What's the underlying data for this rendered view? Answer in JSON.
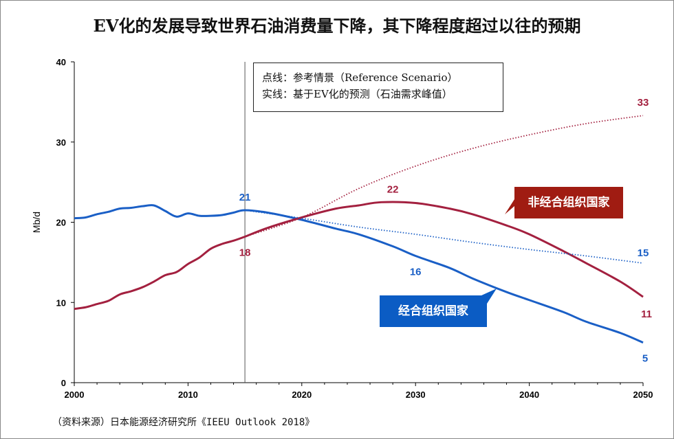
{
  "title": "EV化的发展导致世界石油消费量下降，其下降程度超过以往的预期",
  "source": "（资料来源）日本能源经济研究所《IEEU Outlook 2018》",
  "legend": {
    "line1": "点线：参考情景（Reference Scenario）",
    "line2": "实线：基于EV化的预测（石油需求峰值）"
  },
  "callouts": {
    "non_oecd": "非经合组织国家",
    "oecd": "经合组织国家"
  },
  "colors": {
    "oecd": "#1a5fc6",
    "non_oecd": "#a3203f",
    "non_oecd_box": "#a01c12",
    "oecd_box": "#0b5cc4"
  },
  "chart_data": {
    "type": "line",
    "xlabel": "",
    "ylabel": "Mb/d",
    "xlim": [
      2000,
      2050
    ],
    "ylim": [
      0,
      40
    ],
    "xticks": [
      "2000",
      "2010",
      "2020",
      "2030",
      "2040",
      "2050"
    ],
    "yticks": [
      "0",
      "10",
      "20",
      "30",
      "40"
    ],
    "grid": false,
    "reference_line_x": 2015,
    "series": [
      {
        "name": "经合组织国家",
        "style": "solid",
        "color": "#1a5fc6",
        "x": [
          2000,
          2001,
          2002,
          2003,
          2004,
          2005,
          2006,
          2007,
          2008,
          2009,
          2010,
          2011,
          2012,
          2013,
          2014,
          2015,
          2017,
          2020,
          2023,
          2025,
          2028,
          2030,
          2033,
          2035,
          2038,
          2040,
          2043,
          2045,
          2048,
          2050
        ],
        "y": [
          20.5,
          20.6,
          21.0,
          21.3,
          21.7,
          21.8,
          22.0,
          22.1,
          21.4,
          20.7,
          21.1,
          20.8,
          20.8,
          20.9,
          21.2,
          21.5,
          21.2,
          20.3,
          19.2,
          18.5,
          17.0,
          15.8,
          14.3,
          13.0,
          11.3,
          10.3,
          8.8,
          7.6,
          6.2,
          5.0
        ]
      },
      {
        "name": "非经合组织国家",
        "style": "solid",
        "color": "#a3203f",
        "x": [
          2000,
          2001,
          2002,
          2003,
          2004,
          2005,
          2006,
          2007,
          2008,
          2009,
          2010,
          2011,
          2012,
          2013,
          2014,
          2015,
          2017,
          2020,
          2023,
          2025,
          2027,
          2030,
          2033,
          2035,
          2038,
          2040,
          2043,
          2045,
          2048,
          2050
        ],
        "y": [
          9.2,
          9.4,
          9.8,
          10.2,
          11.0,
          11.4,
          11.9,
          12.6,
          13.4,
          13.8,
          14.8,
          15.6,
          16.7,
          17.3,
          17.7,
          18.2,
          19.3,
          20.6,
          21.7,
          22.1,
          22.5,
          22.4,
          21.7,
          21.0,
          19.6,
          18.5,
          16.4,
          14.9,
          12.6,
          10.7
        ]
      },
      {
        "name": "经合组织国家 参考情景",
        "style": "dotted",
        "color": "#1a5fc6",
        "x": [
          2015,
          2020,
          2025,
          2030,
          2035,
          2040,
          2045,
          2050
        ],
        "y": [
          21.5,
          20.5,
          19.4,
          18.5,
          17.5,
          16.6,
          15.8,
          14.9
        ]
      },
      {
        "name": "非经合组织国家 参考情景",
        "style": "dotted",
        "color": "#a3203f",
        "x": [
          2015,
          2020,
          2025,
          2030,
          2035,
          2040,
          2045,
          2050
        ],
        "y": [
          18.2,
          20.6,
          24.2,
          27.0,
          29.2,
          30.9,
          32.3,
          33.3
        ]
      }
    ],
    "data_labels": [
      {
        "text": "21",
        "x": 2015,
        "y": 21.5,
        "color": "#1a5fc6"
      },
      {
        "text": "18",
        "x": 2015,
        "y": 18.2,
        "color": "#a3203f"
      },
      {
        "text": "22",
        "x": 2028,
        "y": 22.5,
        "color": "#a3203f"
      },
      {
        "text": "16",
        "x": 2030,
        "y": 15.8,
        "color": "#1a5fc6"
      },
      {
        "text": "33",
        "x": 2050,
        "y": 33.3,
        "color": "#a3203f"
      },
      {
        "text": "15",
        "x": 2050,
        "y": 14.9,
        "color": "#1a5fc6"
      },
      {
        "text": "11",
        "x": 2050,
        "y": 10.7,
        "color": "#a3203f"
      },
      {
        "text": "5",
        "x": 2050,
        "y": 5.0,
        "color": "#1a5fc6"
      }
    ]
  }
}
